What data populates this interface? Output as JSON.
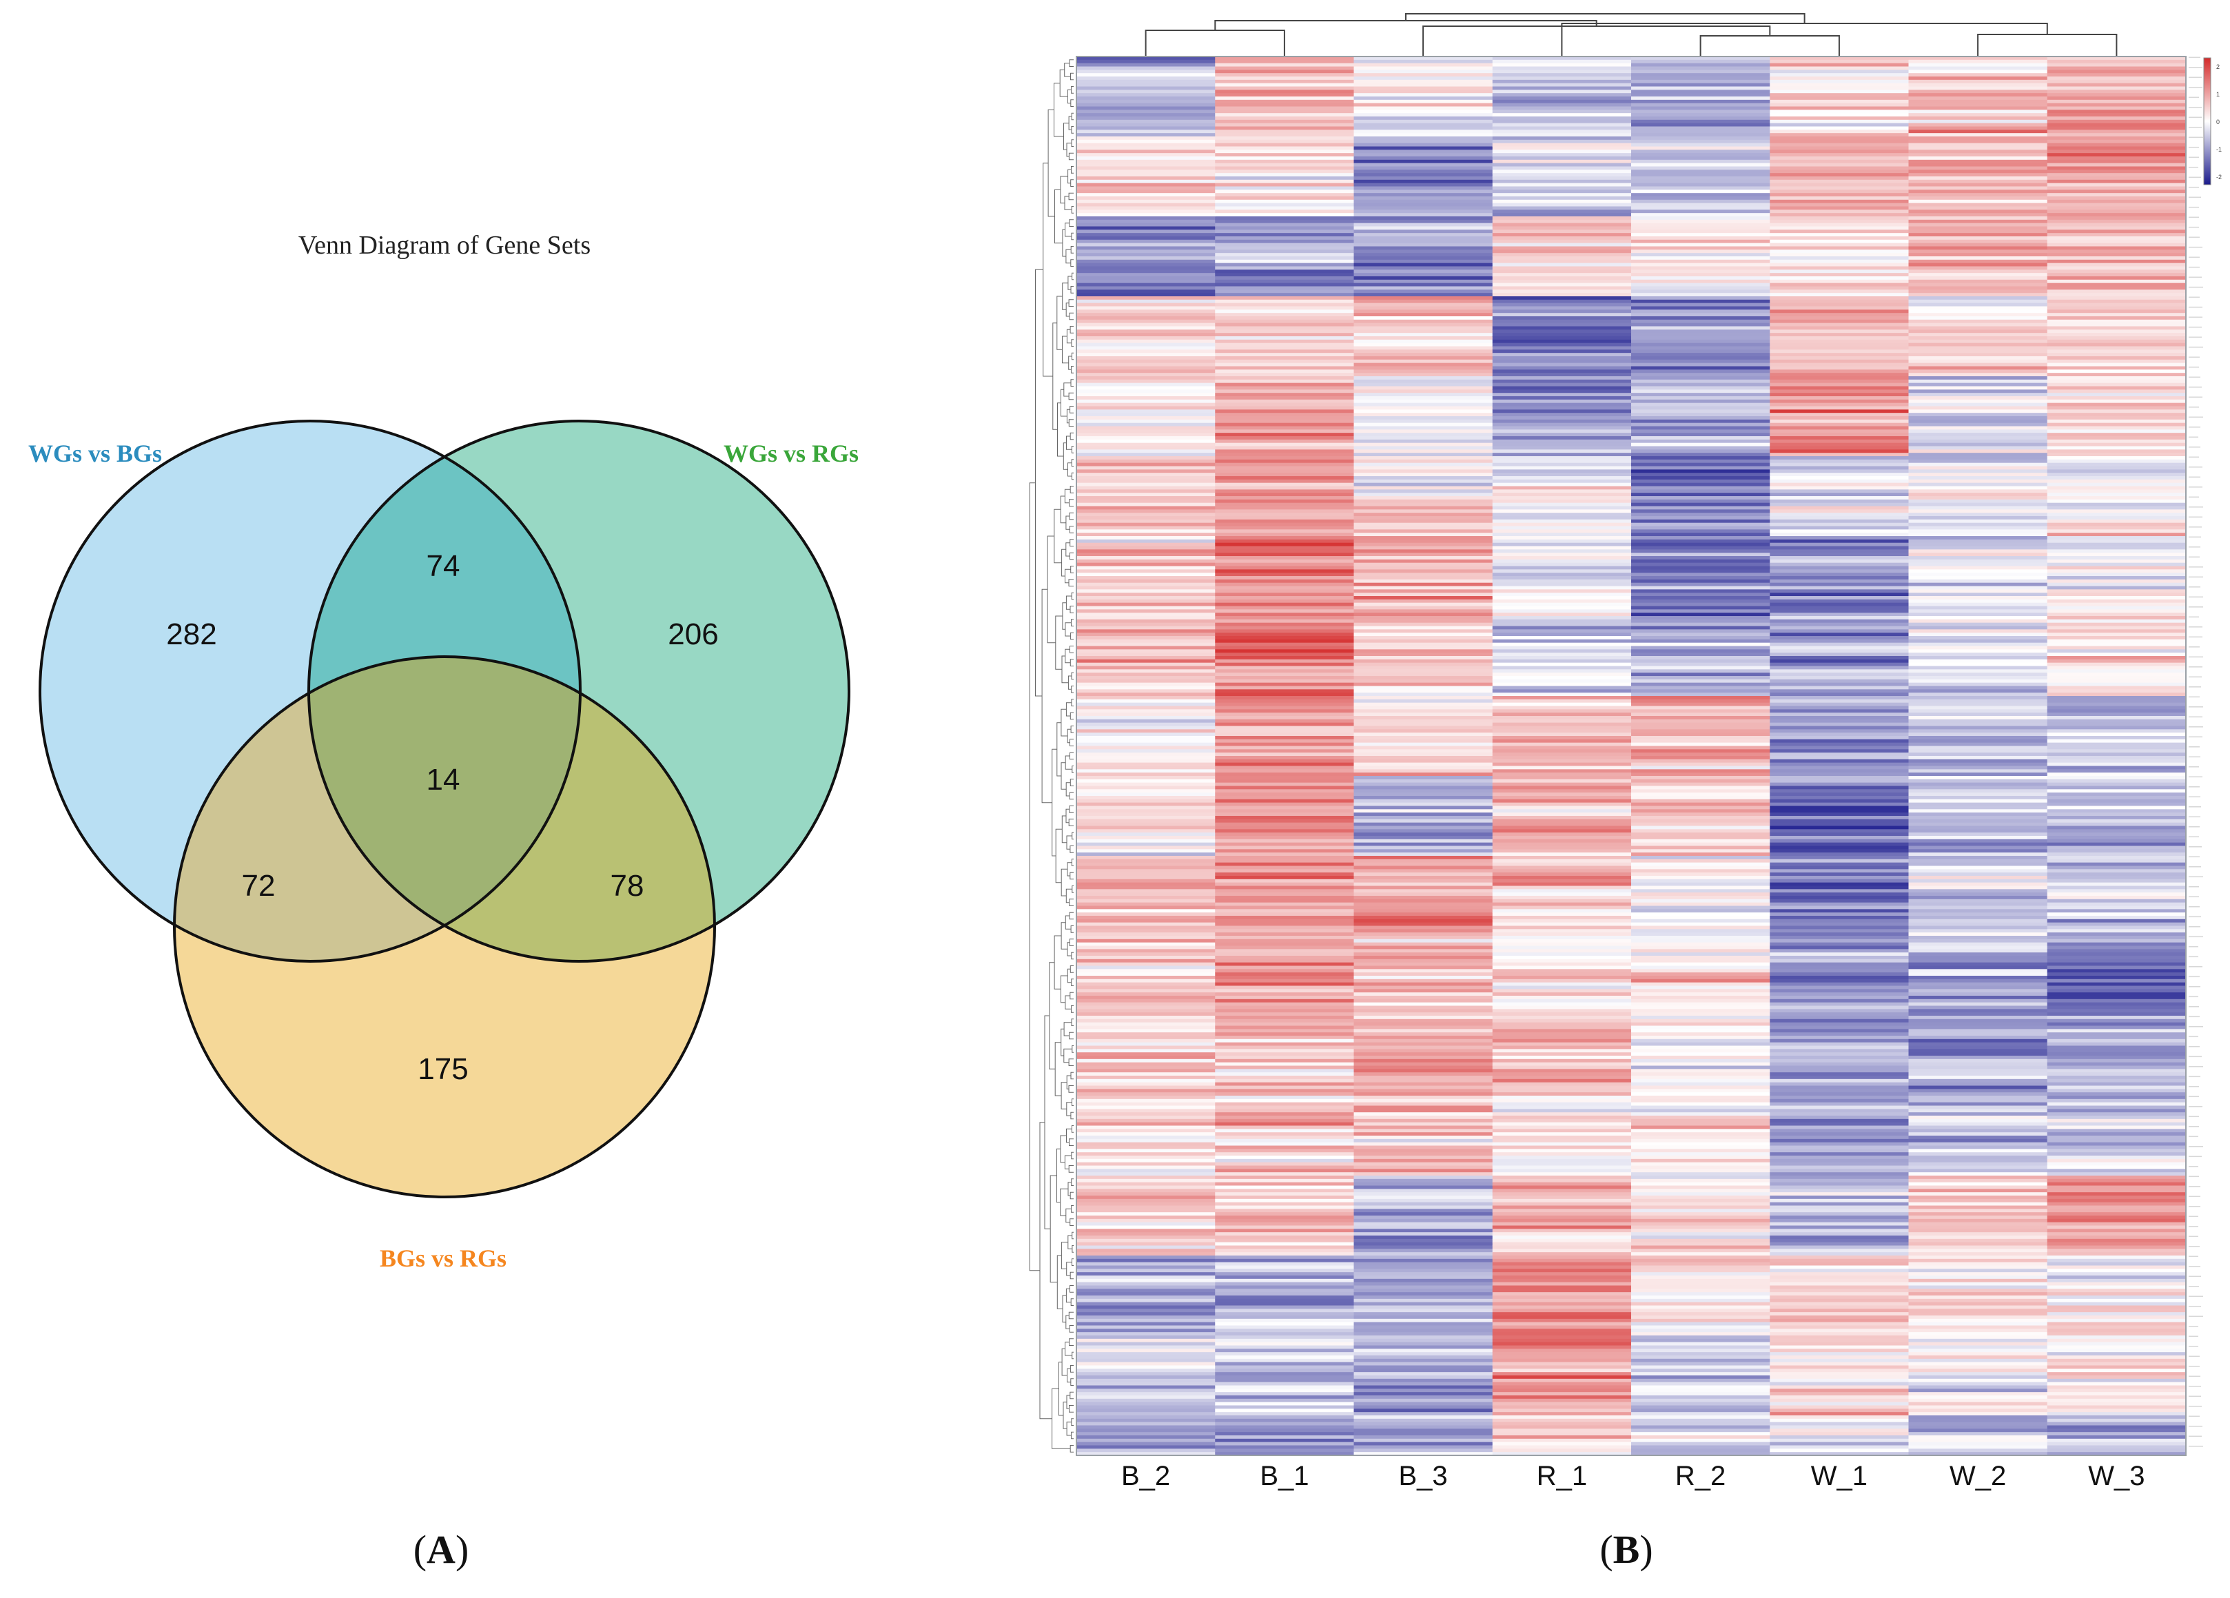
{
  "chart_data": [
    {
      "type": "venn",
      "panel_label": "A",
      "title": "Venn Diagram of Gene Sets",
      "sets": [
        {
          "name": "WGs vs BGs",
          "color": "#2b8cbe",
          "fill": "#b9dff3"
        },
        {
          "name": "WGs vs RGs",
          "color": "#3aa63a",
          "fill": "#98d8c4"
        },
        {
          "name": "BGs vs RGs",
          "color": "#f5861f",
          "fill": "#f5d898"
        }
      ],
      "regions": {
        "only_WGs_vs_BGs": 282,
        "only_WGs_vs_RGs": 206,
        "only_BGs_vs_RGs": 175,
        "WGs_vs_BGs_and_WGs_vs_RGs": 74,
        "WGs_vs_BGs_and_BGs_vs_RGs": 72,
        "WGs_vs_RGs_and_BGs_vs_RGs": 78,
        "all_three": 14
      },
      "region_fills": {
        "ab": "#6cc4c3",
        "ac": "#cec594",
        "bc": "#b9c173",
        "abc": "#9fb373"
      }
    },
    {
      "type": "heatmap",
      "panel_label": "B",
      "columns": [
        "B_2",
        "B_1",
        "B_3",
        "R_1",
        "R_2",
        "W_1",
        "W_2",
        "W_3"
      ],
      "n_rows": 420,
      "color_scale": {
        "low": "#1a1a8c",
        "mid": "#ffffff",
        "high": "#d42a2a",
        "ticks": [
          "2",
          "1",
          "0",
          "-1",
          "-2"
        ],
        "range": [
          -2.3,
          2.3
        ]
      },
      "column_tree": [
        [
          4,
          5
        ],
        [
          6,
          7
        ],
        [
          1,
          0
        ],
        [
          8,
          2
        ],
        [
          9,
          3
        ],
        [
          10,
          11
        ],
        [
          12,
          13
        ]
      ],
      "row_profile": {
        "breaks": [
          0,
          24,
          48,
          72,
          96,
          120,
          144,
          168,
          192,
          216,
          240,
          264,
          288,
          312,
          336,
          360,
          384,
          408,
          420
        ],
        "means": [
          [
            -0.9,
            0.8,
            0.1,
            -0.6,
            -1.0,
            0.2,
            0.6,
            1.2
          ],
          [
            0.3,
            0.2,
            -1.0,
            -0.3,
            -0.4,
            1.0,
            0.8,
            0.9
          ],
          [
            -1.3,
            -1.2,
            -1.1,
            0.6,
            0.3,
            0.3,
            0.8,
            0.7
          ],
          [
            0.5,
            0.4,
            0.6,
            -1.3,
            -1.2,
            0.6,
            0.4,
            0.6
          ],
          [
            0.1,
            1.0,
            -0.2,
            -1.1,
            -0.7,
            1.3,
            -0.4,
            0.4
          ],
          [
            0.4,
            1.2,
            0.3,
            -0.2,
            -1.3,
            -0.2,
            -0.1,
            0.1
          ],
          [
            0.5,
            1.3,
            0.9,
            0.0,
            -1.1,
            -1.2,
            -0.3,
            -0.1
          ],
          [
            0.6,
            1.4,
            0.7,
            -0.4,
            -0.8,
            -0.9,
            -0.3,
            0.3
          ],
          [
            0.4,
            1.0,
            0.3,
            0.8,
            0.9,
            -1.0,
            -0.5,
            -0.6
          ],
          [
            0.1,
            1.0,
            -0.9,
            0.8,
            0.6,
            -1.4,
            -0.6,
            -0.7
          ],
          [
            0.6,
            1.1,
            0.9,
            0.6,
            -0.1,
            -1.5,
            -0.3,
            -0.5
          ],
          [
            0.7,
            1.0,
            0.7,
            0.2,
            0.2,
            -1.1,
            -0.9,
            -1.3
          ],
          [
            0.4,
            0.8,
            0.9,
            0.6,
            0.1,
            -0.9,
            -1.1,
            -0.9
          ],
          [
            0.3,
            0.5,
            0.6,
            0.2,
            0.3,
            -1.1,
            -0.7,
            -0.5
          ],
          [
            0.6,
            0.5,
            -0.7,
            0.9,
            0.3,
            -0.6,
            0.6,
            1.2
          ],
          [
            -0.7,
            -0.6,
            -0.9,
            1.2,
            0.2,
            0.4,
            0.4,
            0.1
          ],
          [
            -0.4,
            -0.5,
            -0.8,
            1.0,
            -0.4,
            0.3,
            0.0,
            0.1
          ],
          [
            -1.0,
            -0.9,
            -1.0,
            0.6,
            -0.6,
            -0.3,
            -0.5,
            -0.7
          ]
        ]
      }
    }
  ],
  "heatmap_seed": 20240917
}
